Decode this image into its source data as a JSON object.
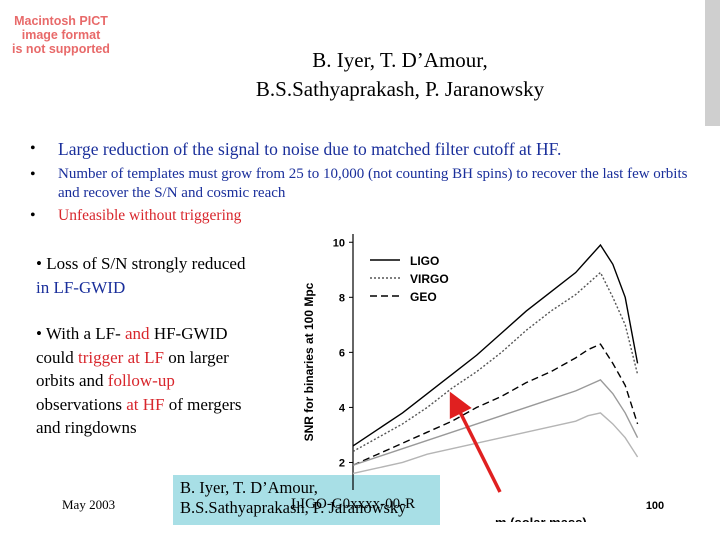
{
  "placeholder": {
    "lines": [
      "Macintosh PICT",
      "image format",
      "is not supported"
    ]
  },
  "title": {
    "line1": "B. Iyer, T. D’Amour,",
    "line2": "B.S.Sathyaprakash, P. Jaranowsky"
  },
  "bullets": [
    "Large reduction of the signal to noise due to matched filter cutoff at HF.",
    "Number of templates must grow from 25 to 10,000 (not counting BH spins) to recover the last few orbits and recover the S/N and cosmic reach",
    "Unfeasible without triggering"
  ],
  "left_text": {
    "p1_a": "• Loss of S/N strongly reduced",
    "p1_b": "in LF-GWID",
    "p2_a": "• With a LF- ",
    "p2_and1": "and",
    "p2_b": " HF-GWID",
    "p2_c": "could ",
    "p2_trigger": "trigger at LF",
    "p2_d": " on larger",
    "p2_e": "orbits and ",
    "p2_follow": "follow-up",
    "p2_f": "observations ",
    "p2_athf": "at HF",
    "p2_g": " of mergers",
    "p2_h": "and ringdowns"
  },
  "footer": {
    "date": "May 2003",
    "box_line1": "B. Iyer, T. D’Amour,",
    "box_line2": "B.S.Sathyaprakash, P. Jaranowsky",
    "doc_id": "LIGO-G0xxxx-00-R"
  },
  "colors": {
    "accent_blue": "#1a2f9b",
    "accent_red": "#d8262c",
    "footer_box": "#a8dfe6"
  },
  "chart_data": {
    "type": "line",
    "ylabel": "SNR for binaries at 100 Mpc",
    "xlabel": "m (solar mass)",
    "yticks": [
      2,
      4,
      6,
      8,
      10
    ],
    "xtick_labels": [
      "100"
    ],
    "ylim": [
      1,
      10.3
    ],
    "legend": {
      "placement": "top-right",
      "entries": [
        "LIGO",
        "VIRGO",
        "GEO"
      ]
    },
    "grid": false,
    "series": [
      {
        "name": "LIGO",
        "style": "solid",
        "color": "#000000",
        "x": [
          0,
          10,
          20,
          30,
          40,
          50,
          60,
          70,
          80,
          90,
          95,
          100,
          105,
          110,
          115
        ],
        "y": [
          2.6,
          3.2,
          3.8,
          4.5,
          5.2,
          5.9,
          6.7,
          7.5,
          8.2,
          8.9,
          9.4,
          9.9,
          9.2,
          8.0,
          5.6
        ]
      },
      {
        "name": "VIRGO",
        "style": "dotted",
        "color": "#555555",
        "x": [
          0,
          10,
          20,
          30,
          40,
          50,
          60,
          70,
          80,
          90,
          95,
          100,
          105,
          110,
          115
        ],
        "y": [
          2.4,
          2.9,
          3.4,
          4.0,
          4.7,
          5.3,
          6.0,
          6.8,
          7.5,
          8.1,
          8.5,
          8.9,
          8.0,
          7.0,
          5.2
        ]
      },
      {
        "name": "GEO",
        "style": "dashed",
        "color": "#000000",
        "x": [
          0,
          10,
          20,
          30,
          40,
          50,
          60,
          70,
          80,
          90,
          95,
          100,
          105,
          110,
          115
        ],
        "y": [
          1.9,
          2.3,
          2.7,
          3.1,
          3.5,
          4.0,
          4.4,
          4.9,
          5.3,
          5.8,
          6.1,
          6.3,
          5.6,
          4.8,
          3.4
        ]
      },
      {
        "name": "",
        "style": "solid",
        "color": "#9a9a9a",
        "x": [
          0,
          10,
          20,
          30,
          40,
          50,
          60,
          70,
          80,
          90,
          95,
          100,
          105,
          110,
          115
        ],
        "y": [
          1.9,
          2.2,
          2.5,
          2.8,
          3.1,
          3.4,
          3.7,
          4.0,
          4.3,
          4.6,
          4.8,
          5.0,
          4.5,
          3.8,
          2.9
        ]
      },
      {
        "name": "",
        "style": "solid",
        "color": "#b5b5b5",
        "x": [
          0,
          10,
          20,
          30,
          40,
          50,
          60,
          70,
          80,
          90,
          95,
          100,
          105,
          110,
          115
        ],
        "y": [
          1.6,
          1.8,
          2.0,
          2.3,
          2.5,
          2.7,
          2.9,
          3.1,
          3.3,
          3.5,
          3.7,
          3.8,
          3.4,
          2.9,
          2.2
        ]
      }
    ]
  }
}
